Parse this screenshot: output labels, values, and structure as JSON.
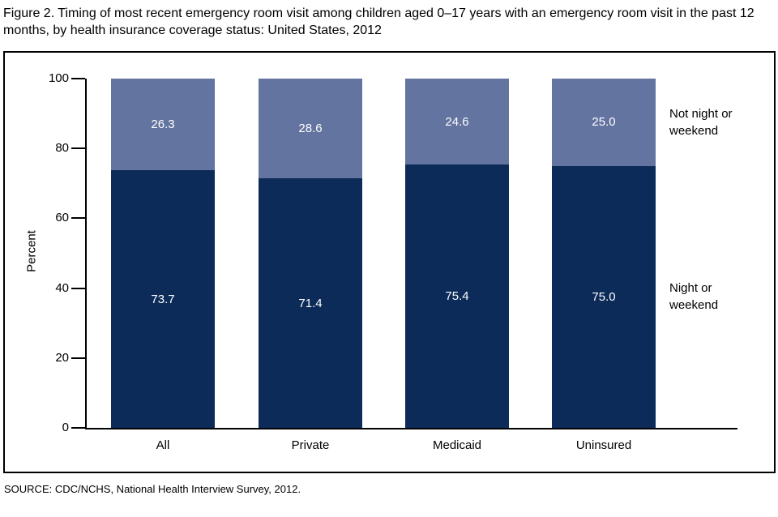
{
  "figure": {
    "title": "Figure 2. Timing of most recent emergency room visit among children aged 0–17 years with an emergency room visit in the past 12 months, by health insurance coverage status: United States, 2012",
    "source": "SOURCE: CDC/NCHS, National Health Interview Survey, 2012."
  },
  "chart_data": {
    "type": "bar",
    "stacked": true,
    "title": "Timing of most recent emergency room visit among children aged 0–17 years with an emergency room visit in the past 12 months, by health insurance coverage status: United States, 2012",
    "categories": [
      "All",
      "Private",
      "Medicaid",
      "Uninsured"
    ],
    "series": [
      {
        "name": "Night or weekend",
        "color": "#0C2B59",
        "values": [
          73.7,
          71.4,
          75.4,
          75.0
        ],
        "labels": [
          "73.7",
          "71.4",
          "75.4",
          "75.0"
        ]
      },
      {
        "name": "Not night or weekend",
        "color": "#6474A0",
        "values": [
          26.3,
          28.6,
          24.6,
          25.0
        ],
        "labels": [
          "26.3",
          "28.6",
          "24.6",
          "25.0"
        ]
      }
    ],
    "xlabel": "",
    "ylabel": "Percent",
    "ylim": [
      0,
      100
    ],
    "yticks": [
      0,
      20,
      40,
      60,
      80,
      100
    ],
    "grid": false,
    "legend_position": "right of last bar, aligned with each segment",
    "value_labels": "inside segments, white text",
    "axis_color": "#000000",
    "frame": "black rectangle around entire plot"
  }
}
